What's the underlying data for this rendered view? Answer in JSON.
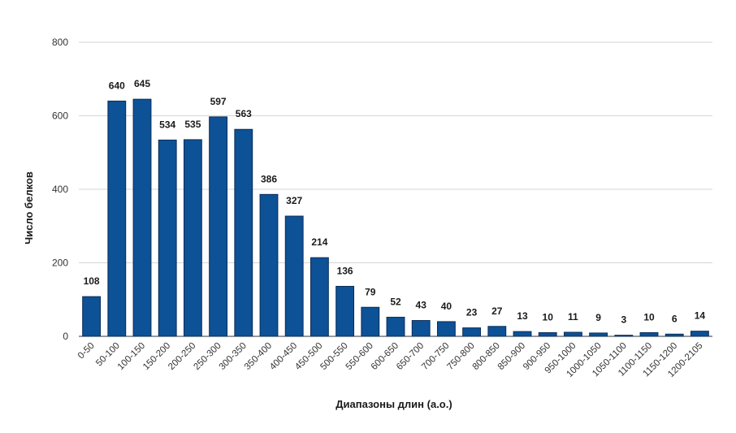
{
  "chart_data": {
    "type": "bar",
    "title": "",
    "xlabel": "Диапазоны длин (а.о.)",
    "ylabel": "Число белков",
    "ylim": [
      0,
      800
    ],
    "yticks": [
      0,
      200,
      400,
      600,
      800
    ],
    "grid": true,
    "legend": "none",
    "bar_color": "#0d5196",
    "bar_border_color": "#0a2d57",
    "categories": [
      "0-50",
      "50-100",
      "100-150",
      "150-200",
      "200-250",
      "250-300",
      "300-350",
      "350-400",
      "400-450",
      "450-500",
      "500-550",
      "550-600",
      "600-650",
      "650-700",
      "700-750",
      "750-800",
      "800-850",
      "850-900",
      "900-950",
      "950-1000",
      "1000-1050",
      "1050-1100",
      "1100-1150",
      "1150-1200",
      "1200-2105"
    ],
    "values": [
      108,
      640,
      645,
      534,
      535,
      597,
      563,
      386,
      327,
      214,
      136,
      79,
      52,
      43,
      40,
      23,
      27,
      13,
      10,
      11,
      9,
      3,
      10,
      6,
      14
    ]
  }
}
